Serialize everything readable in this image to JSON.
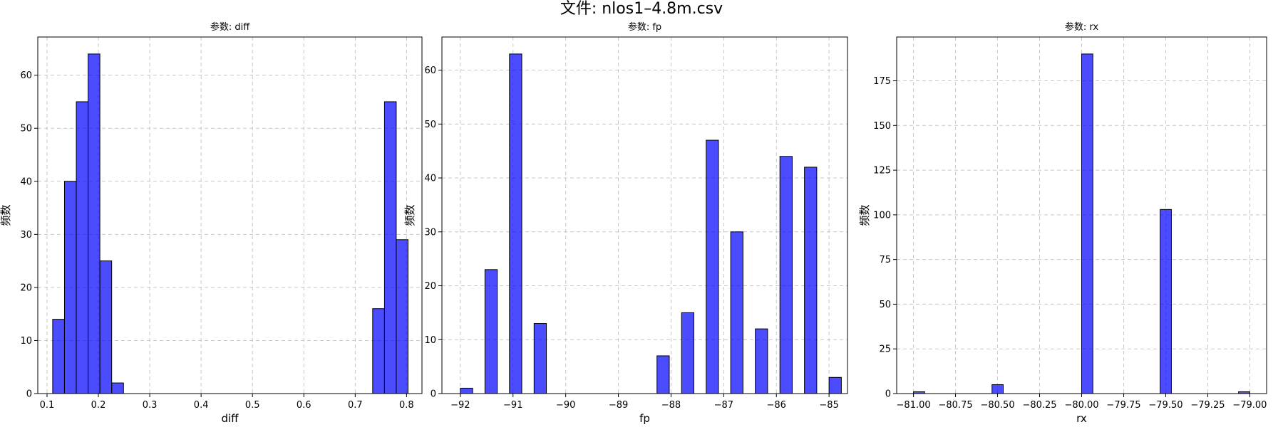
{
  "figure": {
    "suptitle": "文件: nlos1–4.8m.csv",
    "colors": {
      "bar_fill": "#0000ff",
      "bar_fill_opacity": 0.7,
      "bar_edge": "#000000",
      "grid": "#b0b0b0"
    }
  },
  "chart_data": [
    {
      "type": "bar",
      "title": "参数: diff",
      "xlabel": "diff",
      "ylabel": "频数",
      "xlim": [
        0.082,
        0.83
      ],
      "ylim": [
        0,
        67.2
      ],
      "xticks": [
        0.1,
        0.2,
        0.3,
        0.4,
        0.5,
        0.6,
        0.7,
        0.8
      ],
      "xtick_labels": [
        "0.1",
        "0.2",
        "0.3",
        "0.4",
        "0.5",
        "0.6",
        "0.7",
        "0.8"
      ],
      "yticks": [
        0,
        10,
        20,
        30,
        40,
        50,
        60
      ],
      "ytick_labels": [
        "0",
        "10",
        "20",
        "30",
        "40",
        "50",
        "60"
      ],
      "grid": true,
      "bin_width": 0.0229,
      "bins": [
        {
          "x0": 0.111,
          "value": 14
        },
        {
          "x0": 0.134,
          "value": 40
        },
        {
          "x0": 0.157,
          "value": 55
        },
        {
          "x0": 0.18,
          "value": 64
        },
        {
          "x0": 0.203,
          "value": 25
        },
        {
          "x0": 0.226,
          "value": 2
        },
        {
          "x0": 0.734,
          "value": 16
        },
        {
          "x0": 0.757,
          "value": 55
        },
        {
          "x0": 0.78,
          "value": 29
        }
      ]
    },
    {
      "type": "bar",
      "title": "参数: fp",
      "xlabel": "fp",
      "ylabel": "频数",
      "xlim": [
        -92.35,
        -84.65
      ],
      "ylim": [
        0,
        66.15
      ],
      "xticks": [
        -92,
        -91,
        -90,
        -89,
        -88,
        -87,
        -86,
        -85
      ],
      "xtick_labels": [
        "−92",
        "−91",
        "−90",
        "−89",
        "−88",
        "−87",
        "−86",
        "−85"
      ],
      "yticks": [
        0,
        10,
        20,
        30,
        40,
        50,
        60
      ],
      "ytick_labels": [
        "0",
        "10",
        "20",
        "30",
        "40",
        "50",
        "60"
      ],
      "grid": true,
      "bin_width": 0.2333,
      "bins": [
        {
          "x0": -92.0,
          "value": 1
        },
        {
          "x0": -91.533,
          "value": 23
        },
        {
          "x0": -91.067,
          "value": 63
        },
        {
          "x0": -90.6,
          "value": 13
        },
        {
          "x0": -88.267,
          "value": 7
        },
        {
          "x0": -87.8,
          "value": 15
        },
        {
          "x0": -87.333,
          "value": 47
        },
        {
          "x0": -86.867,
          "value": 30
        },
        {
          "x0": -86.4,
          "value": 12
        },
        {
          "x0": -85.933,
          "value": 44
        },
        {
          "x0": -85.467,
          "value": 42
        },
        {
          "x0": -85.0,
          "value": 3
        }
      ]
    },
    {
      "type": "bar",
      "title": "参数: rx",
      "xlabel": "rx",
      "ylabel": "频数",
      "xlim": [
        -81.1,
        -78.9
      ],
      "ylim": [
        0,
        199.5
      ],
      "xticks": [
        -81.0,
        -80.75,
        -80.5,
        -80.25,
        -80.0,
        -79.75,
        -79.5,
        -79.25,
        -79.0
      ],
      "xtick_labels": [
        "−81.00",
        "−80.75",
        "−80.50",
        "−80.25",
        "−80.00",
        "−79.75",
        "−79.50",
        "−79.25",
        "−79.00"
      ],
      "yticks": [
        0,
        25,
        50,
        75,
        100,
        125,
        150,
        175
      ],
      "ytick_labels": [
        "0",
        "25",
        "50",
        "75",
        "100",
        "125",
        "150",
        "175"
      ],
      "grid": true,
      "bin_width": 0.0667,
      "bins": [
        {
          "x0": -81.0,
          "value": 1
        },
        {
          "x0": -80.533,
          "value": 5
        },
        {
          "x0": -80.0,
          "value": 190
        },
        {
          "x0": -79.533,
          "value": 103
        },
        {
          "x0": -79.067,
          "value": 1
        }
      ]
    }
  ]
}
